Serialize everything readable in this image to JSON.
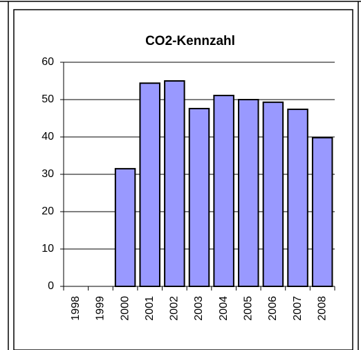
{
  "chart_data": {
    "type": "bar",
    "title": "CO2-Kennzahl",
    "categories": [
      "1998",
      "1999",
      "2000",
      "2001",
      "2002",
      "2003",
      "2004",
      "2005",
      "2006",
      "2007",
      "2008"
    ],
    "values": [
      null,
      null,
      31.5,
      54.4,
      55,
      47.6,
      51.1,
      50,
      49.3,
      47.4,
      39.8
    ],
    "color": "#9999ff",
    "ylim": [
      0,
      60
    ],
    "yticks": [
      0,
      10,
      20,
      30,
      40,
      50,
      60
    ],
    "grid": true
  }
}
